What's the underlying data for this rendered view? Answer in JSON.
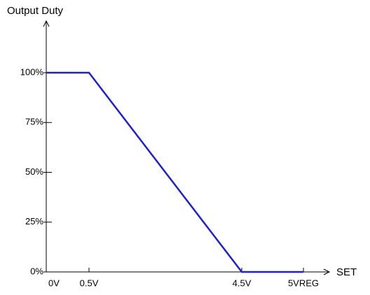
{
  "chart_data": {
    "type": "line",
    "y_label": "Output Duty",
    "x_label": "SET",
    "categories": [
      "0V",
      "0.5V",
      "4.5V",
      "5VREG"
    ],
    "series": [
      {
        "color": "#1f1fd6",
        "values": [
          100,
          100,
          0,
          0
        ]
      }
    ],
    "ylim": [
      0,
      100
    ],
    "yticks": [
      {
        "value": 0,
        "label": "0%"
      },
      {
        "value": 25,
        "label": "25%"
      },
      {
        "value": 50,
        "label": "50%"
      },
      {
        "value": 75,
        "label": "75%"
      },
      {
        "value": 100,
        "label": "100%"
      }
    ]
  }
}
